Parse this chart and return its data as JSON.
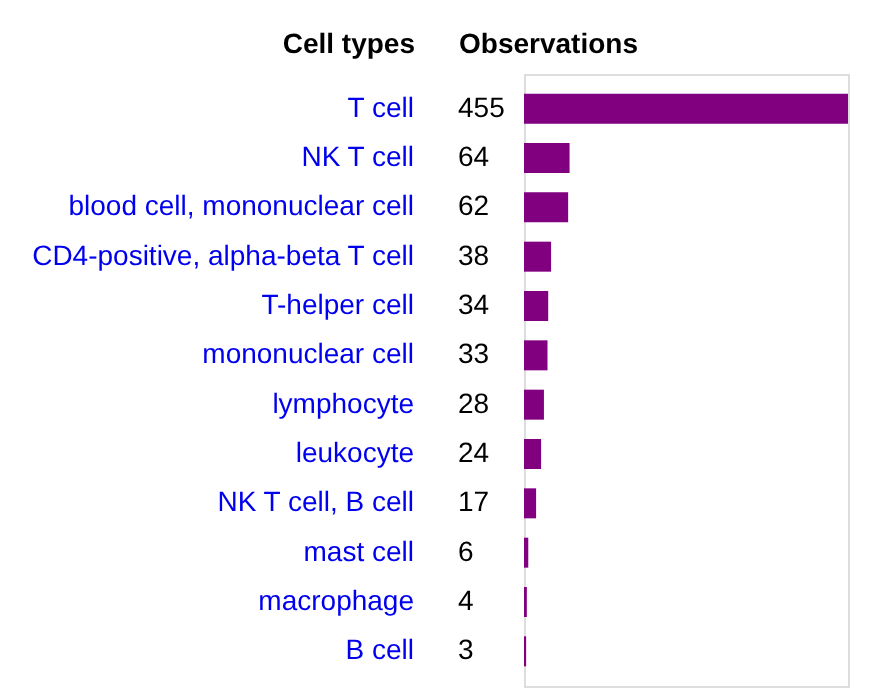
{
  "chart_data": {
    "type": "bar",
    "orientation": "horizontal",
    "ylabel": "Cell types",
    "xlabel": "Observations",
    "categories": [
      "T cell",
      "NK T cell",
      "blood cell, mononuclear cell",
      "CD4-positive, alpha-beta T cell",
      "T-helper cell",
      "mononuclear cell",
      "lymphocyte",
      "leukocyte",
      "NK T cell, B cell",
      "mast cell",
      "macrophage",
      "B cell"
    ],
    "values": [
      455,
      64,
      62,
      38,
      34,
      33,
      28,
      24,
      17,
      6,
      4,
      3
    ],
    "color": "#800080",
    "xlim": [
      0,
      455
    ],
    "data_labels": true,
    "tick_labels": "y"
  }
}
